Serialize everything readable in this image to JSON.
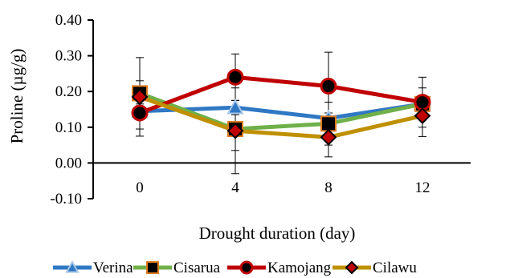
{
  "chart_data": {
    "type": "line",
    "title": "",
    "xlabel": "Drought duration (day)",
    "ylabel": "Proline (µg/g)",
    "ylim": [
      -0.1,
      0.4
    ],
    "yticks": [
      "-0.10",
      "0.00",
      "0.10",
      "0.20",
      "0.30",
      "0.40"
    ],
    "ytick_values": [
      -0.1,
      0.0,
      0.1,
      0.2,
      0.3,
      0.4
    ],
    "categories": [
      "0",
      "4",
      "8",
      "12"
    ],
    "grid": false,
    "legend_position": "bottom",
    "series": [
      {
        "name": "Verina",
        "color": "#2f78c4",
        "marker": "triangle",
        "marker_fill": "#2f78c4",
        "marker_stroke": "#a9c7e8",
        "values": [
          0.145,
          0.155,
          0.125,
          0.165
        ],
        "errors": [
          0.02,
          0.02,
          0.015,
          0.02
        ]
      },
      {
        "name": "Cisarua",
        "color": "#6fb04a",
        "marker": "square",
        "marker_fill": "#000000",
        "marker_stroke": "#e07b1f",
        "values": [
          0.195,
          0.095,
          0.11,
          0.165
        ],
        "errors": [
          0.035,
          0.06,
          0.06,
          0.045
        ]
      },
      {
        "name": "Kamojang",
        "color": "#c00000",
        "marker": "circle",
        "marker_fill": "#000000",
        "marker_stroke": "#c00000",
        "values": [
          0.14,
          0.24,
          0.215,
          0.17
        ],
        "errors": [
          0.045,
          0.065,
          0.095,
          0.07
        ]
      },
      {
        "name": "Cilawu",
        "color": "#bf9000",
        "marker": "diamond",
        "marker_fill": "#c00000",
        "marker_stroke": "#000000",
        "values": [
          0.185,
          0.09,
          0.072,
          0.132
        ],
        "errors": [
          0.11,
          0.12,
          0.055,
          0.058
        ]
      }
    ]
  }
}
